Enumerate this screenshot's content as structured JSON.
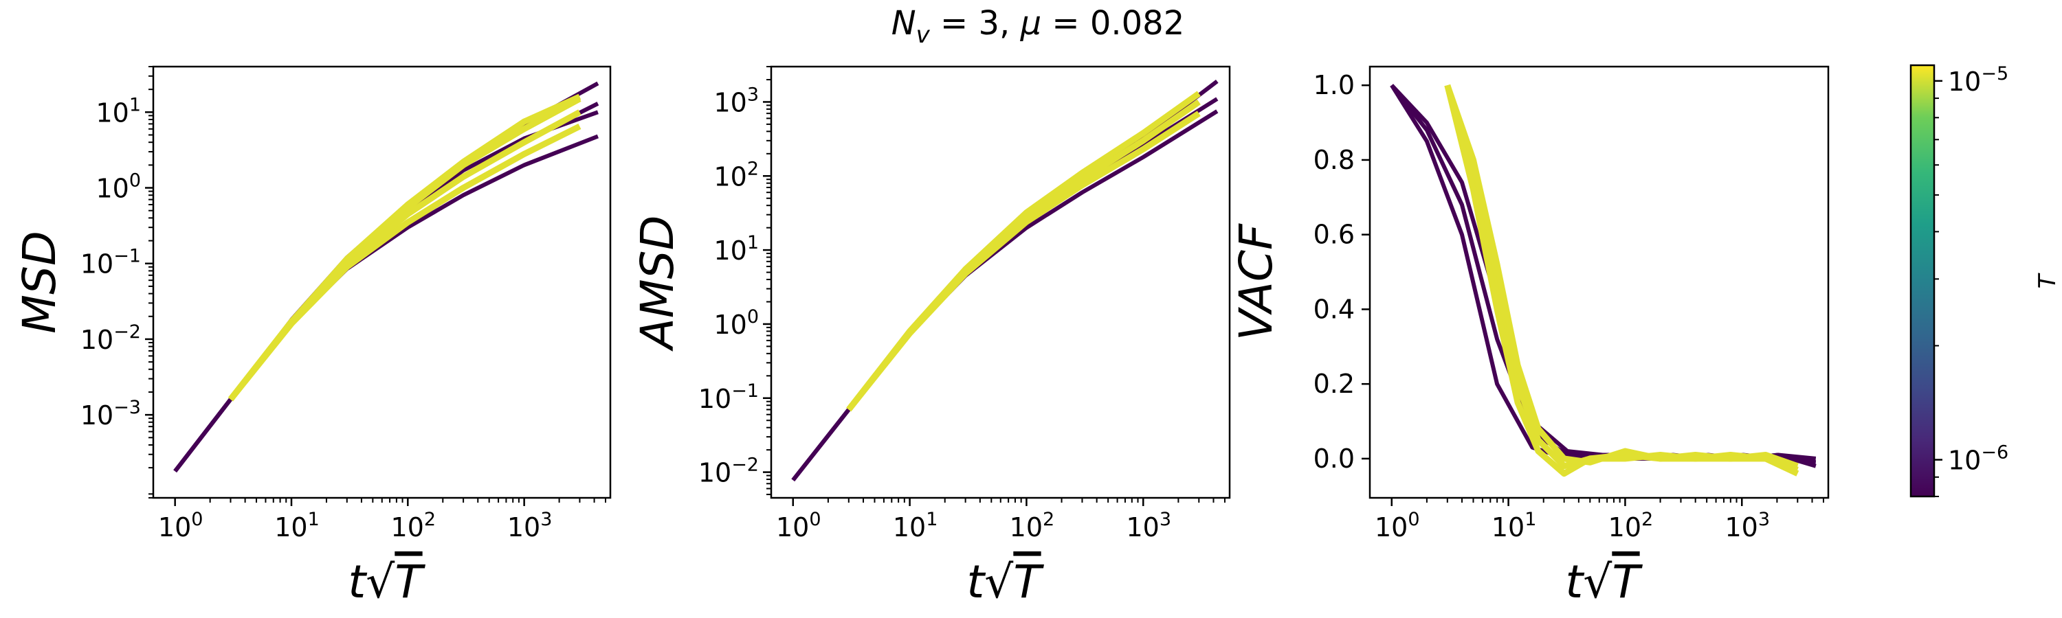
{
  "title": "N_v = 3, μ = 0.082",
  "colors": {
    "low_T": "#440154",
    "high_T": "#fde725"
  },
  "colorbar": {
    "label": "T",
    "tick_labels": [
      "10",
      "10"
    ],
    "tick_exponents": [
      "−5",
      "−6"
    ],
    "range": [
      8e-07,
      1.1e-05
    ],
    "scale": "log",
    "colormap": "viridis"
  },
  "chart_data": [
    {
      "type": "line",
      "ylabel": "MSD",
      "xlabel": "t√T",
      "xscale": "log",
      "yscale": "log",
      "xlim": [
        0.65,
        5500
      ],
      "ylim": [
        8e-05,
        40
      ],
      "x_tick_base": [
        "10",
        "10",
        "10",
        "10"
      ],
      "x_tick_exponents": [
        "0",
        "1",
        "2",
        "3"
      ],
      "y_tick_base": [
        "10",
        "10",
        "10",
        "10",
        "10"
      ],
      "y_tick_exponents": [
        "1",
        "0",
        "−1",
        "−2",
        "−3"
      ],
      "series": [
        {
          "T": 8e-07,
          "x": [
            1,
            3,
            10,
            30,
            100,
            300,
            1000,
            4300
          ],
          "y": [
            0.00018,
            0.0016,
            0.017,
            0.1,
            0.45,
            1.4,
            4.2,
            13
          ]
        },
        {
          "T": 8e-07,
          "x": [
            1,
            3,
            10,
            30,
            100,
            300,
            1000,
            4300
          ],
          "y": [
            0.00018,
            0.0016,
            0.016,
            0.085,
            0.3,
            0.8,
            2.0,
            4.8
          ]
        },
        {
          "T": 8e-07,
          "x": [
            1,
            3,
            10,
            30,
            100,
            300,
            1000,
            4300
          ],
          "y": [
            0.00018,
            0.0016,
            0.018,
            0.12,
            0.6,
            2.2,
            7.0,
            24
          ]
        },
        {
          "T": 8e-07,
          "x": [
            1,
            3,
            10,
            30,
            100,
            300,
            1000,
            4300
          ],
          "y": [
            0.00018,
            0.0016,
            0.017,
            0.11,
            0.5,
            1.7,
            4.5,
            10
          ]
        },
        {
          "T": 1e-05,
          "x": [
            3,
            10,
            30,
            100,
            300,
            1000,
            3000
          ],
          "y": [
            0.0016,
            0.017,
            0.11,
            0.55,
            2.0,
            6.0,
            15
          ]
        },
        {
          "T": 1e-05,
          "x": [
            3,
            10,
            30,
            100,
            300,
            1000,
            3000
          ],
          "y": [
            0.0016,
            0.016,
            0.09,
            0.35,
            1.0,
            2.8,
            6.5
          ]
        },
        {
          "T": 1e-05,
          "x": [
            3,
            10,
            30,
            100,
            300,
            1000,
            3000
          ],
          "y": [
            0.0016,
            0.017,
            0.1,
            0.45,
            1.4,
            4.0,
            10
          ]
        },
        {
          "T": 1e-05,
          "x": [
            3,
            10,
            30,
            100,
            300,
            1000,
            3000
          ],
          "y": [
            0.0016,
            0.017,
            0.115,
            0.6,
            2.2,
            7.5,
            16
          ]
        }
      ]
    },
    {
      "type": "line",
      "ylabel": "AMSD",
      "xlabel": "t√T",
      "xscale": "log",
      "yscale": "log",
      "xlim": [
        0.65,
        5500
      ],
      "ylim": [
        0.0045,
        3000
      ],
      "x_tick_base": [
        "10",
        "10",
        "10",
        "10"
      ],
      "x_tick_exponents": [
        "0",
        "1",
        "2",
        "3"
      ],
      "y_tick_base": [
        "10",
        "10",
        "10",
        "10",
        "10",
        "10"
      ],
      "y_tick_exponents": [
        "3",
        "2",
        "1",
        "0",
        "−1",
        "−2"
      ],
      "series": [
        {
          "T": 8e-07,
          "x": [
            1,
            3,
            10,
            30,
            100,
            300,
            1000,
            4300
          ],
          "y": [
            0.0078,
            0.07,
            0.8,
            5.5,
            30,
            100,
            330,
            1900
          ]
        },
        {
          "T": 8e-07,
          "x": [
            1,
            3,
            10,
            30,
            100,
            300,
            1000,
            4300
          ],
          "y": [
            0.0078,
            0.07,
            0.75,
            4.5,
            20,
            60,
            180,
            750
          ]
        },
        {
          "T": 8e-07,
          "x": [
            1,
            3,
            10,
            30,
            100,
            300,
            1000,
            4300
          ],
          "y": [
            0.0078,
            0.07,
            0.78,
            5,
            25,
            80,
            260,
            1100
          ]
        },
        {
          "T": 1e-05,
          "x": [
            3,
            10,
            30,
            100,
            300,
            1000,
            3000
          ],
          "y": [
            0.07,
            0.8,
            5.5,
            32,
            110,
            380,
            1300
          ]
        },
        {
          "T": 1e-05,
          "x": [
            3,
            10,
            30,
            100,
            300,
            1000,
            3000
          ],
          "y": [
            0.07,
            0.75,
            4.8,
            24,
            75,
            230,
            700
          ]
        },
        {
          "T": 1e-05,
          "x": [
            3,
            10,
            30,
            100,
            300,
            1000,
            3000
          ],
          "y": [
            0.07,
            0.78,
            5.2,
            28,
            90,
            300,
            1000
          ]
        }
      ]
    },
    {
      "type": "line",
      "ylabel": "VACF",
      "xlabel": "t√T",
      "xscale": "log",
      "yscale": "linear",
      "xlim": [
        0.65,
        5500
      ],
      "ylim": [
        -0.105,
        1.05
      ],
      "x_tick_base": [
        "10",
        "10",
        "10",
        "10"
      ],
      "x_tick_exponents": [
        "0",
        "1",
        "2",
        "3"
      ],
      "y_tick_labels": [
        "1.0",
        "0.8",
        "0.6",
        "0.4",
        "0.2",
        "0.0"
      ],
      "y_ticks": [
        1.0,
        0.8,
        0.6,
        0.4,
        0.2,
        0.0
      ],
      "series": [
        {
          "T": 8e-07,
          "x": [
            1,
            2,
            4,
            8,
            16,
            32,
            64,
            128,
            256,
            512,
            1024,
            2048,
            4300
          ],
          "y": [
            1.0,
            0.85,
            0.6,
            0.2,
            0.03,
            0.0,
            0.0,
            0.0,
            0.0,
            0.0,
            0.0,
            0.01,
            0.0
          ]
        },
        {
          "T": 8e-07,
          "x": [
            1,
            2,
            4,
            8,
            16,
            32,
            64,
            128,
            256,
            512,
            1024,
            2048,
            4300
          ],
          "y": [
            1.0,
            0.88,
            0.68,
            0.32,
            0.07,
            0.01,
            0.01,
            0.0,
            0.01,
            0.0,
            0.01,
            0.0,
            -0.01
          ]
        },
        {
          "T": 8e-07,
          "x": [
            1,
            2,
            4,
            8,
            16,
            32,
            64,
            128,
            256,
            512,
            1024,
            2048,
            4300
          ],
          "y": [
            1.0,
            0.9,
            0.74,
            0.42,
            0.1,
            0.02,
            0.01,
            0.01,
            0.0,
            0.01,
            0.0,
            0.01,
            -0.02
          ]
        },
        {
          "T": 1e-05,
          "x": [
            3,
            5,
            8,
            12,
            18,
            30,
            50,
            100,
            200,
            400,
            800,
            1600,
            3000
          ],
          "y": [
            1.0,
            0.75,
            0.45,
            0.2,
            0.05,
            -0.02,
            0.0,
            0.01,
            0.0,
            0.0,
            0.01,
            0.0,
            -0.03
          ]
        },
        {
          "T": 1e-05,
          "x": [
            3,
            5,
            8,
            12,
            18,
            30,
            50,
            100,
            200,
            400,
            800,
            1600,
            3000
          ],
          "y": [
            1.0,
            0.8,
            0.52,
            0.25,
            0.08,
            0.0,
            -0.01,
            0.02,
            0.0,
            0.01,
            0.0,
            0.01,
            -0.02
          ]
        },
        {
          "T": 1e-05,
          "x": [
            3,
            5,
            8,
            12,
            18,
            30,
            50,
            100,
            200,
            400,
            800,
            1600,
            3000
          ],
          "y": [
            1.0,
            0.72,
            0.4,
            0.15,
            0.02,
            -0.04,
            0.0,
            0.0,
            0.01,
            0.0,
            0.0,
            0.0,
            -0.04
          ]
        }
      ]
    }
  ]
}
